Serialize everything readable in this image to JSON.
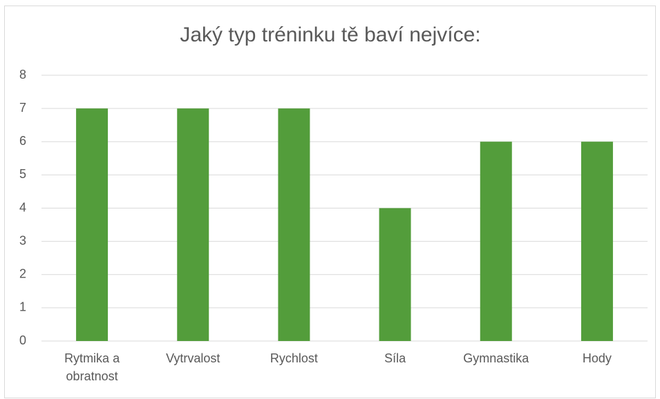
{
  "chart_data": {
    "type": "bar",
    "title": "Jaký typ tréninku tě baví nejvíce:",
    "categories": [
      "Rytmika a obratnost",
      "Vytrvalost",
      "Rychlost",
      "Síla",
      "Gymnastika",
      "Hody"
    ],
    "values": [
      7,
      7,
      7,
      4,
      6,
      6
    ],
    "color": "#539d3b",
    "ylim": [
      0,
      8
    ],
    "yticks": [
      0,
      1,
      2,
      3,
      4,
      5,
      6,
      7,
      8
    ],
    "grid": true
  }
}
